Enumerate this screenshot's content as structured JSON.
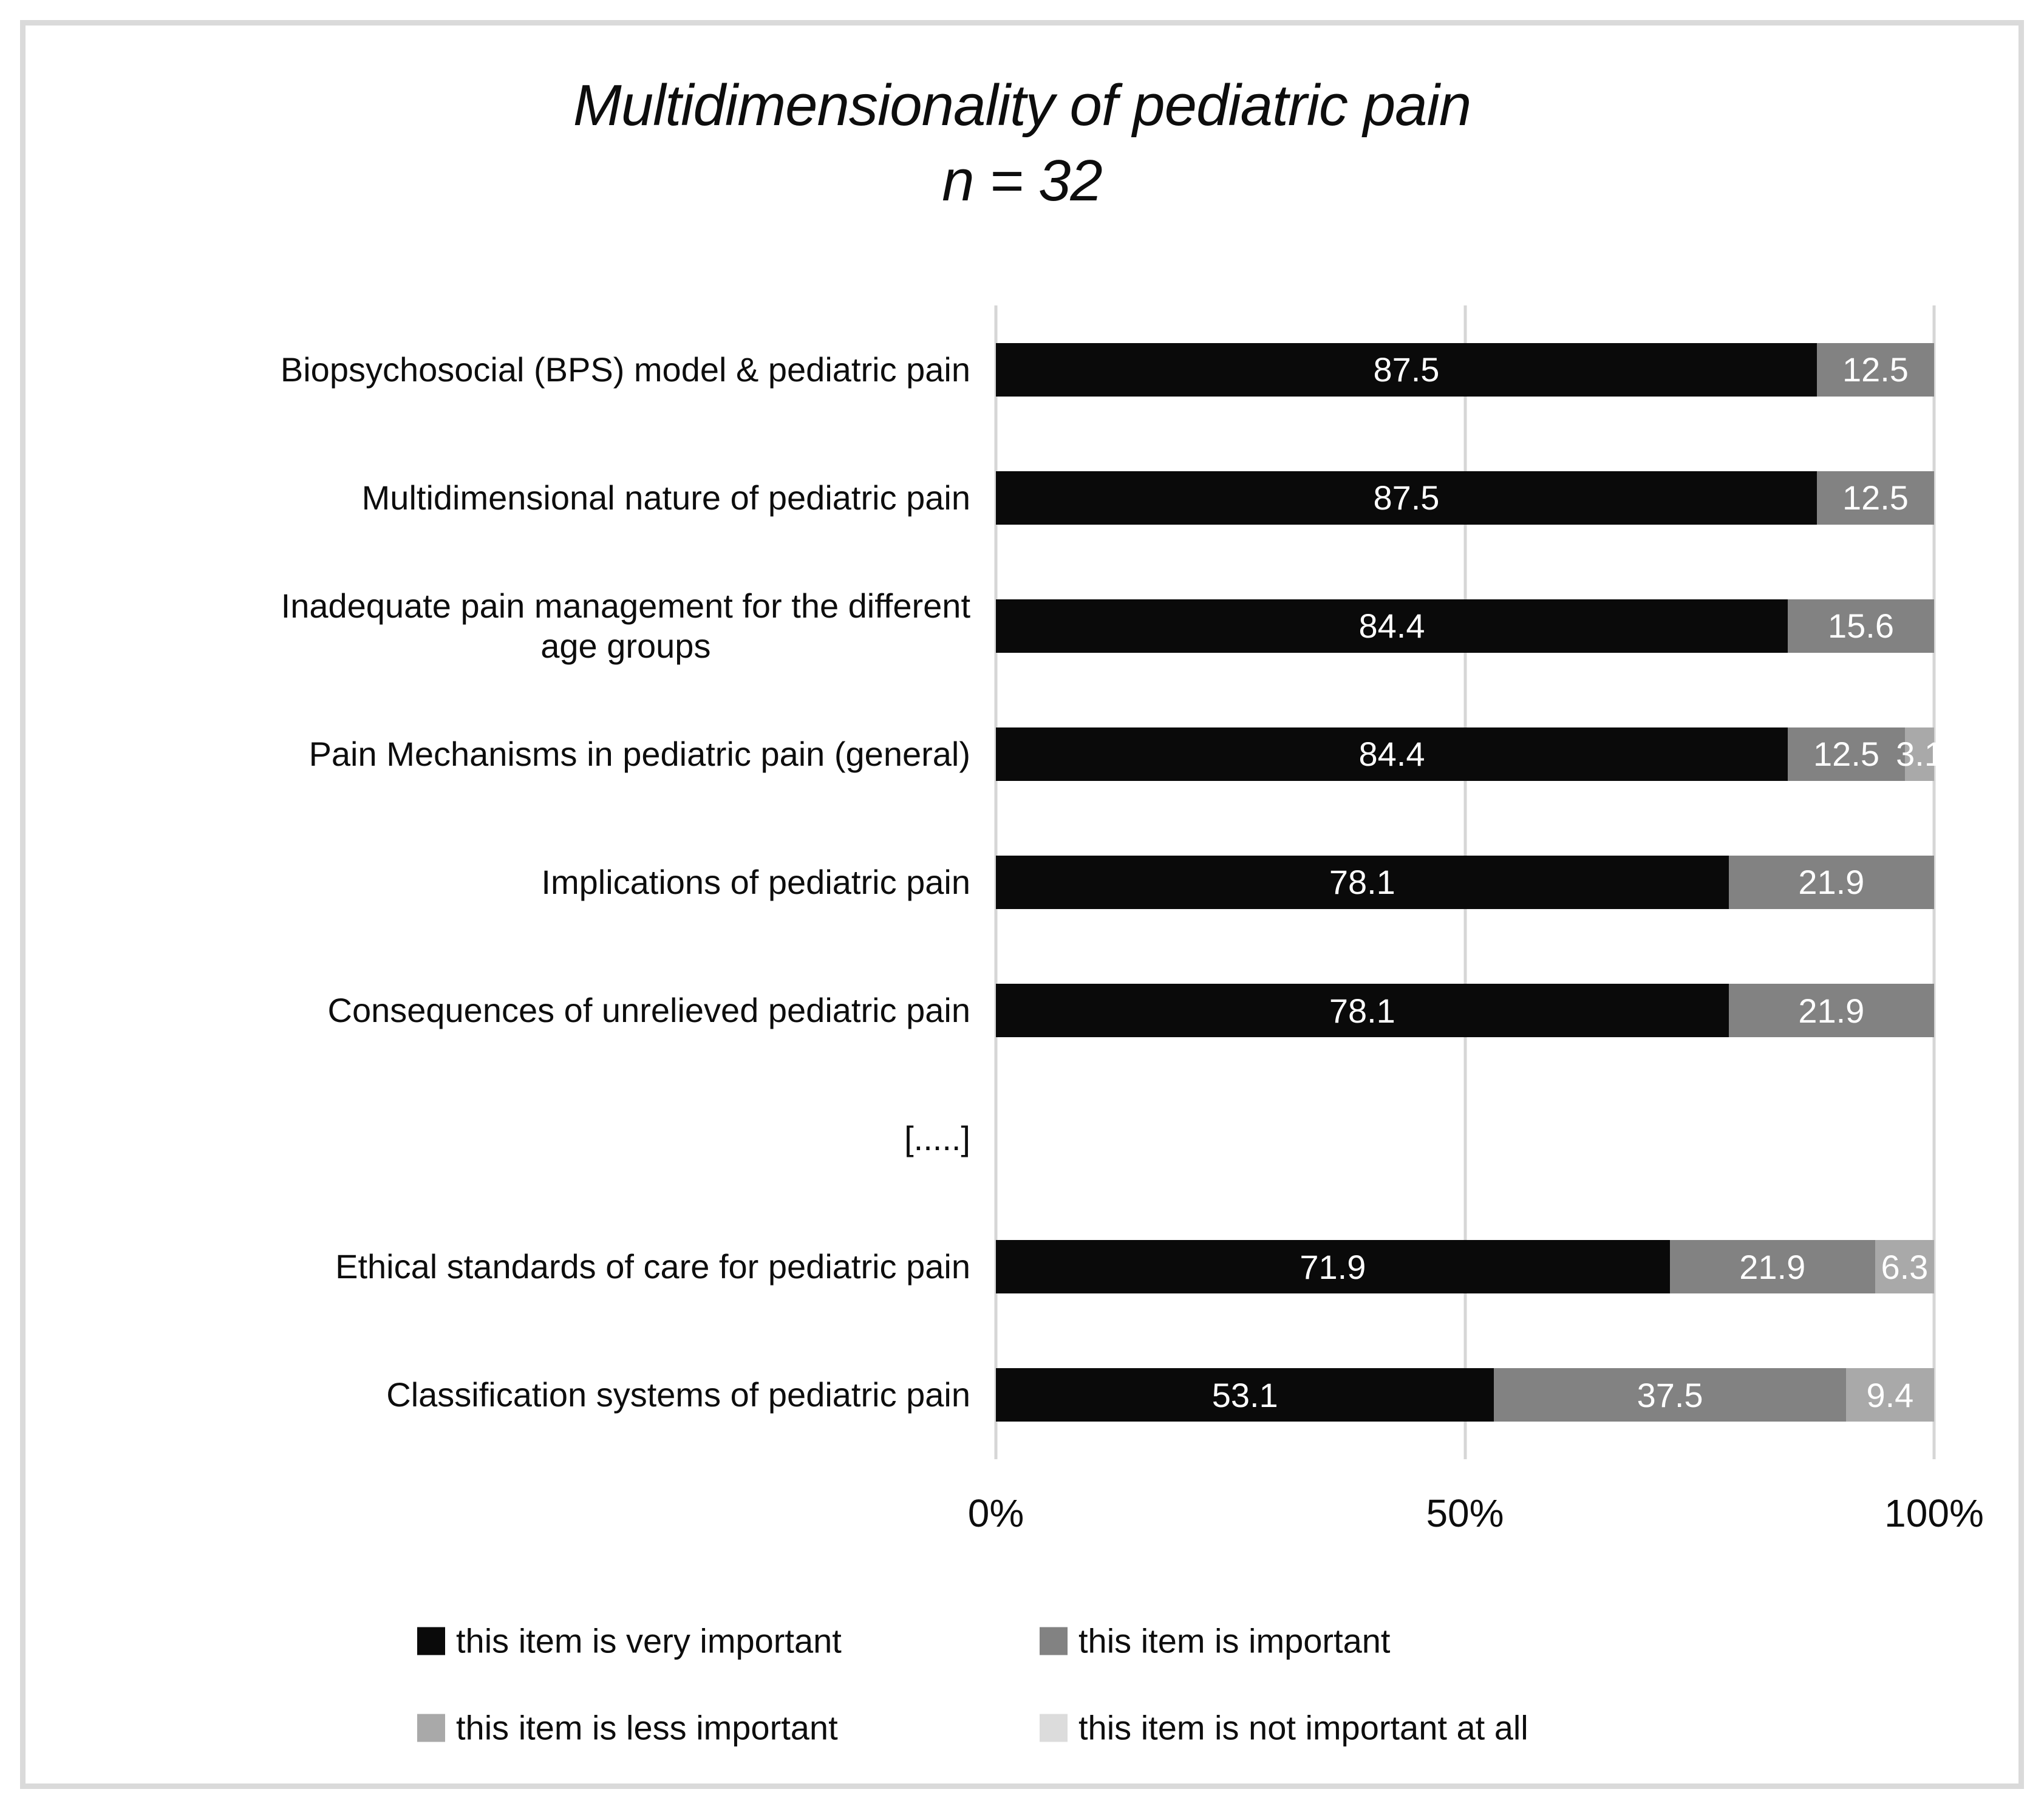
{
  "title": {
    "line1": "Multidimensionality of pediatric pain",
    "line2": "n = 32"
  },
  "colors": {
    "very_important": "#0a0a0a",
    "important": "#828282",
    "less_important": "#a9a9a9",
    "not_important": "#dcdcdc",
    "gridline": "#d6d6d6",
    "frame": "#dadada"
  },
  "legend": [
    {
      "label": "this item is very important",
      "color": "#0a0a0a"
    },
    {
      "label": "this item is important",
      "color": "#828282"
    },
    {
      "label": "this item is less important",
      "color": "#a9a9a9"
    },
    {
      "label": "this item is not important at all",
      "color": "#dcdcdc"
    }
  ],
  "chart_data": {
    "type": "bar",
    "orientation": "horizontal",
    "stacked": true,
    "title": "Multidimensionality of pediatric pain",
    "subtitle": "n = 32",
    "xlim": [
      0,
      100
    ],
    "x_ticks": [
      "0%",
      "50%",
      "100%"
    ],
    "x_tick_values": [
      0,
      50,
      100
    ],
    "gridlines": true,
    "legend_position": "bottom",
    "categories": [
      "Biopsychosocial (BPS) model & pediatric pain",
      "Multidimensional nature of pediatric pain",
      "Inadequate pain management for the different\nage groups",
      "Pain Mechanisms in pediatric pain (general)",
      "Implications of pediatric pain",
      "Consequences of unrelieved pediatric pain",
      "[.....]",
      "Ethical standards of care for pediatric pain",
      "Classification systems of pediatric pain"
    ],
    "series": [
      {
        "name": "this item is very important",
        "color": "#0a0a0a",
        "values": [
          87.5,
          87.5,
          84.4,
          84.4,
          78.1,
          78.1,
          null,
          71.9,
          53.1
        ]
      },
      {
        "name": "this item is important",
        "color": "#828282",
        "values": [
          12.5,
          12.5,
          15.6,
          12.5,
          21.9,
          21.9,
          null,
          21.9,
          37.5
        ]
      },
      {
        "name": "this item is less important",
        "color": "#a9a9a9",
        "values": [
          null,
          null,
          null,
          3.1,
          null,
          null,
          null,
          6.3,
          9.4
        ]
      },
      {
        "name": "this item is not important at all",
        "color": "#dcdcdc",
        "values": [
          null,
          null,
          null,
          null,
          null,
          null,
          null,
          null,
          null
        ]
      }
    ]
  }
}
